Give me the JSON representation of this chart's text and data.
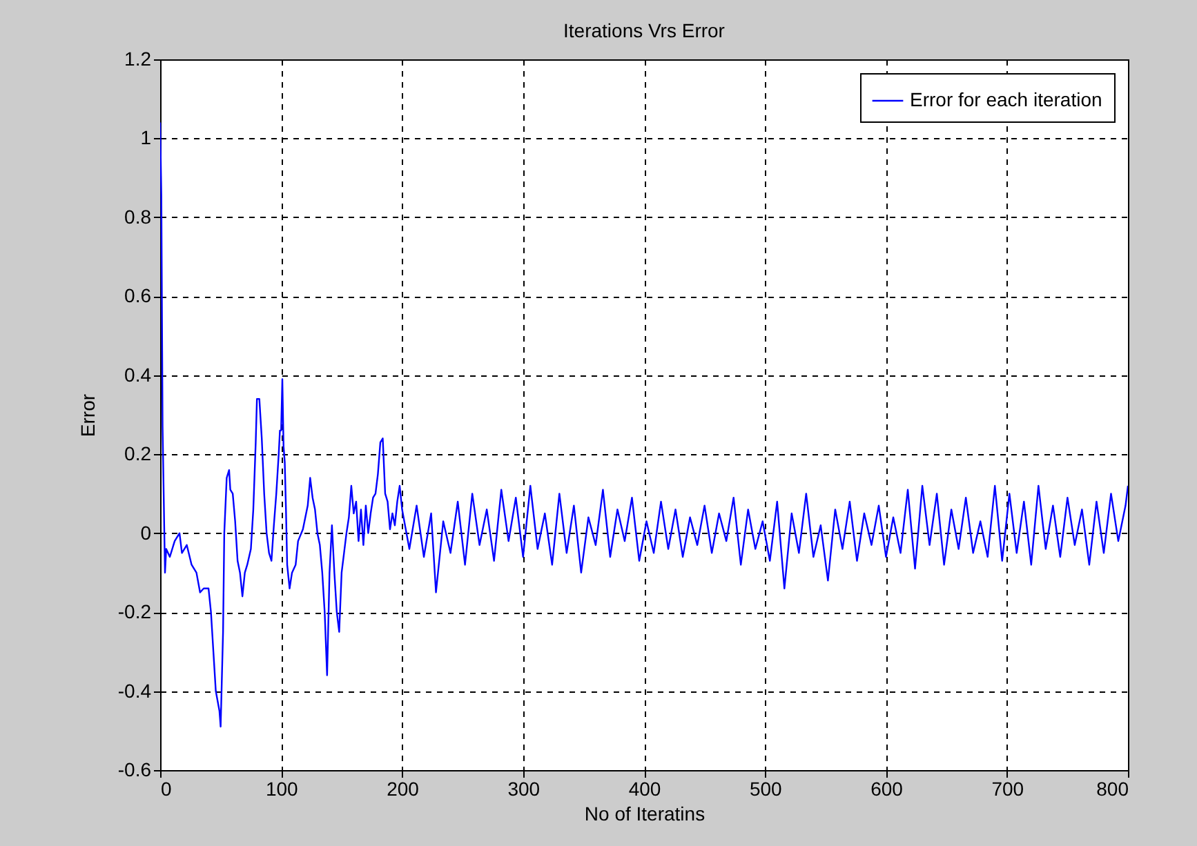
{
  "chart_data": {
    "type": "line",
    "title": "Iterations Vrs Error",
    "xlabel": "No of Iteratins",
    "ylabel": "Error",
    "xlim": [
      0,
      800
    ],
    "xticks": [
      0,
      100,
      200,
      300,
      400,
      500,
      600,
      700,
      800
    ],
    "ylim": [
      -0.6,
      1.2
    ],
    "yticks": [
      -0.6,
      -0.4,
      -0.2,
      0,
      0.2,
      0.4,
      0.6,
      0.8,
      1,
      1.2
    ],
    "grid": true,
    "legend": "top right",
    "line_style": "solid",
    "marker": "none",
    "series": [
      {
        "name": "Error for each iteration",
        "color": "#0000ff",
        "x": [
          0,
          1,
          2,
          4,
          5,
          8,
          12,
          16,
          18,
          22,
          26,
          30,
          33,
          36,
          40,
          42,
          44,
          46,
          49,
          50,
          52,
          53,
          55,
          57,
          58,
          60,
          62,
          64,
          66,
          68,
          70,
          72,
          75,
          77,
          79,
          80,
          82,
          84,
          86,
          88,
          90,
          92,
          94,
          96,
          98,
          99,
          100,
          101,
          102,
          103,
          104,
          105,
          107,
          109,
          112,
          114,
          118,
          120,
          122,
          124,
          126,
          128,
          130,
          132,
          134,
          136,
          138,
          140,
          142,
          144,
          146,
          148,
          150,
          152,
          154,
          156,
          158,
          160,
          162,
          164,
          166,
          168,
          170,
          172,
          174,
          176,
          178,
          180,
          182,
          184,
          186,
          188,
          190,
          192,
          194,
          196,
          198,
          200,
          206,
          212,
          218,
          224,
          228,
          234,
          240,
          246,
          252,
          258,
          264,
          270,
          276,
          282,
          288,
          294,
          300,
          306,
          312,
          318,
          324,
          330,
          336,
          342,
          348,
          354,
          360,
          366,
          372,
          378,
          384,
          390,
          396,
          402,
          408,
          414,
          420,
          426,
          432,
          438,
          444,
          450,
          456,
          462,
          468,
          474,
          480,
          486,
          492,
          498,
          504,
          510,
          516,
          522,
          528,
          534,
          540,
          546,
          552,
          558,
          564,
          570,
          576,
          582,
          588,
          594,
          600,
          606,
          612,
          618,
          624,
          630,
          636,
          642,
          648,
          654,
          660,
          666,
          672,
          678,
          684,
          690,
          696,
          702,
          708,
          714,
          720,
          726,
          732,
          738,
          744,
          750,
          756,
          762,
          768,
          774,
          780,
          786,
          792,
          798,
          800
        ],
        "values": [
          1.04,
          0.85,
          0.27,
          -0.1,
          -0.04,
          -0.06,
          -0.02,
          0,
          -0.05,
          -0.03,
          -0.08,
          -0.1,
          -0.15,
          -0.14,
          -0.14,
          -0.2,
          -0.3,
          -0.4,
          -0.45,
          -0.49,
          -0.25,
          0,
          0.14,
          0.16,
          0.11,
          0.1,
          0.03,
          -0.07,
          -0.1,
          -0.16,
          -0.1,
          -0.08,
          -0.04,
          0.06,
          0.23,
          0.34,
          0.34,
          0.24,
          0.1,
          0,
          -0.05,
          -0.07,
          0.02,
          0.1,
          0.2,
          0.26,
          0.26,
          0.39,
          0.22,
          0.18,
          0.06,
          -0.08,
          -0.14,
          -0.1,
          -0.08,
          -0.02,
          0.01,
          0.04,
          0.07,
          0.14,
          0.09,
          0.06,
          0,
          -0.03,
          -0.1,
          -0.2,
          -0.36,
          -0.1,
          0.02,
          -0.1,
          -0.2,
          -0.25,
          -0.1,
          -0.05,
          0,
          0.04,
          0.12,
          0.05,
          0.08,
          -0.02,
          0.06,
          -0.03,
          0.07,
          0,
          0.05,
          0.09,
          0.1,
          0.15,
          0.23,
          0.24,
          0.1,
          0.08,
          0.01,
          0.05,
          0.02,
          0.08,
          0.12,
          0.06,
          -0.04,
          0.07,
          -0.06,
          0.05,
          -0.15,
          0.03,
          -0.05,
          0.08,
          -0.08,
          0.1,
          -0.03,
          0.06,
          -0.07,
          0.11,
          -0.02,
          0.09,
          -0.06,
          0.12,
          -0.04,
          0.05,
          -0.08,
          0.1,
          -0.05,
          0.07,
          -0.1,
          0.04,
          -0.03,
          0.11,
          -0.06,
          0.06,
          -0.02,
          0.09,
          -0.07,
          0.03,
          -0.05,
          0.08,
          -0.04,
          0.06,
          -0.06,
          0.04,
          -0.03,
          0.07,
          -0.05,
          0.05,
          -0.02,
          0.09,
          -0.08,
          0.06,
          -0.04,
          0.03,
          -0.07,
          0.08,
          -0.14,
          0.05,
          -0.05,
          0.1,
          -0.06,
          0.02,
          -0.12,
          0.06,
          -0.04,
          0.08,
          -0.07,
          0.05,
          -0.03,
          0.07,
          -0.06,
          0.04,
          -0.05,
          0.11,
          -0.09,
          0.12,
          -0.03,
          0.1,
          -0.08,
          0.06,
          -0.04,
          0.09,
          -0.05,
          0.03,
          -0.06,
          0.12,
          -0.07,
          0.1,
          -0.05,
          0.08,
          -0.08,
          0.12,
          -0.04,
          0.07,
          -0.06,
          0.09,
          -0.03,
          0.06,
          -0.08,
          0.08,
          -0.05,
          0.1,
          -0.02,
          0.07,
          0.12
        ]
      }
    ]
  }
}
